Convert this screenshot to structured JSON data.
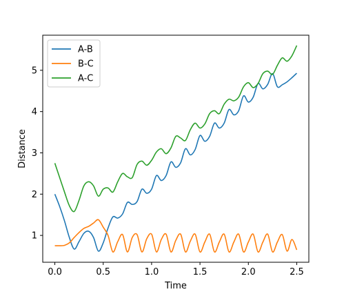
{
  "chart_data": {
    "type": "line",
    "title": "",
    "xlabel": "Time",
    "ylabel": "Distance",
    "xlim": [
      -0.125,
      2.625
    ],
    "ylim": [
      0.35,
      5.85
    ],
    "xticks": [
      0.0,
      0.5,
      1.0,
      1.5,
      2.0,
      2.5
    ],
    "xtick_labels": [
      "0.0",
      "0.5",
      "1.0",
      "1.5",
      "2.0",
      "2.5"
    ],
    "yticks": [
      1,
      2,
      3,
      4,
      5
    ],
    "ytick_labels": [
      "1",
      "2",
      "3",
      "4",
      "5"
    ],
    "grid": false,
    "legend_position": "top-left",
    "series": [
      {
        "name": "A-B",
        "color": "#1f77b4",
        "x": [
          0.0,
          0.05,
          0.1,
          0.15,
          0.2,
          0.25,
          0.3,
          0.35,
          0.4,
          0.45,
          0.5,
          0.55,
          0.6,
          0.65,
          0.7,
          0.75,
          0.8,
          0.85,
          0.9,
          0.95,
          1.0,
          1.05,
          1.1,
          1.15,
          1.2,
          1.25,
          1.3,
          1.35,
          1.4,
          1.45,
          1.5,
          1.55,
          1.6,
          1.65,
          1.7,
          1.75,
          1.8,
          1.85,
          1.9,
          1.95,
          2.0,
          2.05,
          2.1,
          2.15,
          2.2,
          2.25,
          2.3,
          2.35,
          2.4,
          2.45,
          2.5
        ],
        "y": [
          2.0,
          1.7,
          1.35,
          0.95,
          0.67,
          0.85,
          1.05,
          1.1,
          0.95,
          0.62,
          0.82,
          1.18,
          1.45,
          1.42,
          1.52,
          1.8,
          1.75,
          1.82,
          2.12,
          2.02,
          2.12,
          2.45,
          2.33,
          2.45,
          2.78,
          2.65,
          2.76,
          3.1,
          2.95,
          3.08,
          3.42,
          3.28,
          3.4,
          3.72,
          3.6,
          3.72,
          4.05,
          3.92,
          4.02,
          4.38,
          4.23,
          4.35,
          4.68,
          4.55,
          4.66,
          4.92,
          4.6,
          4.65,
          4.72,
          4.82,
          4.93
        ]
      },
      {
        "name": "B-C",
        "color": "#ff7f0e",
        "x": [
          0.0,
          0.05,
          0.1,
          0.15,
          0.2,
          0.25,
          0.3,
          0.35,
          0.4,
          0.45,
          0.5,
          0.55,
          0.6,
          0.65,
          0.7,
          0.75,
          0.8,
          0.85,
          0.9,
          0.95,
          1.0,
          1.05,
          1.1,
          1.15,
          1.2,
          1.25,
          1.3,
          1.35,
          1.4,
          1.45,
          1.5,
          1.55,
          1.6,
          1.65,
          1.7,
          1.75,
          1.8,
          1.85,
          1.9,
          1.95,
          2.0,
          2.05,
          2.1,
          2.15,
          2.2,
          2.25,
          2.3,
          2.35,
          2.4,
          2.45,
          2.5
        ],
        "y": [
          0.75,
          0.75,
          0.76,
          0.82,
          0.95,
          1.07,
          1.17,
          1.22,
          1.3,
          1.38,
          1.2,
          1.0,
          0.6,
          0.85,
          1.02,
          0.6,
          0.95,
          1.02,
          0.6,
          0.92,
          1.03,
          0.6,
          0.9,
          1.03,
          0.6,
          0.88,
          1.03,
          0.6,
          0.86,
          1.03,
          0.6,
          0.84,
          1.03,
          0.6,
          0.84,
          1.03,
          0.6,
          0.84,
          1.03,
          0.6,
          0.84,
          1.03,
          0.6,
          0.84,
          1.03,
          0.6,
          0.84,
          1.02,
          0.62,
          0.9,
          0.65
        ]
      },
      {
        "name": "A-C",
        "color": "#2ca02c",
        "x": [
          0.0,
          0.05,
          0.1,
          0.15,
          0.2,
          0.25,
          0.3,
          0.35,
          0.4,
          0.45,
          0.5,
          0.55,
          0.6,
          0.65,
          0.7,
          0.75,
          0.8,
          0.85,
          0.9,
          0.95,
          1.0,
          1.05,
          1.1,
          1.15,
          1.2,
          1.25,
          1.3,
          1.35,
          1.4,
          1.45,
          1.5,
          1.55,
          1.6,
          1.65,
          1.7,
          1.75,
          1.8,
          1.85,
          1.9,
          1.95,
          2.0,
          2.05,
          2.1,
          2.15,
          2.2,
          2.25,
          2.3,
          2.35,
          2.4,
          2.45,
          2.5
        ],
        "y": [
          2.75,
          2.4,
          2.05,
          1.72,
          1.58,
          1.85,
          2.2,
          2.3,
          2.2,
          1.95,
          2.12,
          2.15,
          2.05,
          2.3,
          2.5,
          2.42,
          2.4,
          2.72,
          2.8,
          2.7,
          2.82,
          3.02,
          3.1,
          2.98,
          3.12,
          3.4,
          3.36,
          3.3,
          3.56,
          3.72,
          3.6,
          3.7,
          3.95,
          4.02,
          3.95,
          4.18,
          4.3,
          4.26,
          4.35,
          4.6,
          4.7,
          4.58,
          4.68,
          4.92,
          4.98,
          4.9,
          5.12,
          5.3,
          5.22,
          5.35,
          5.6
        ]
      }
    ]
  }
}
